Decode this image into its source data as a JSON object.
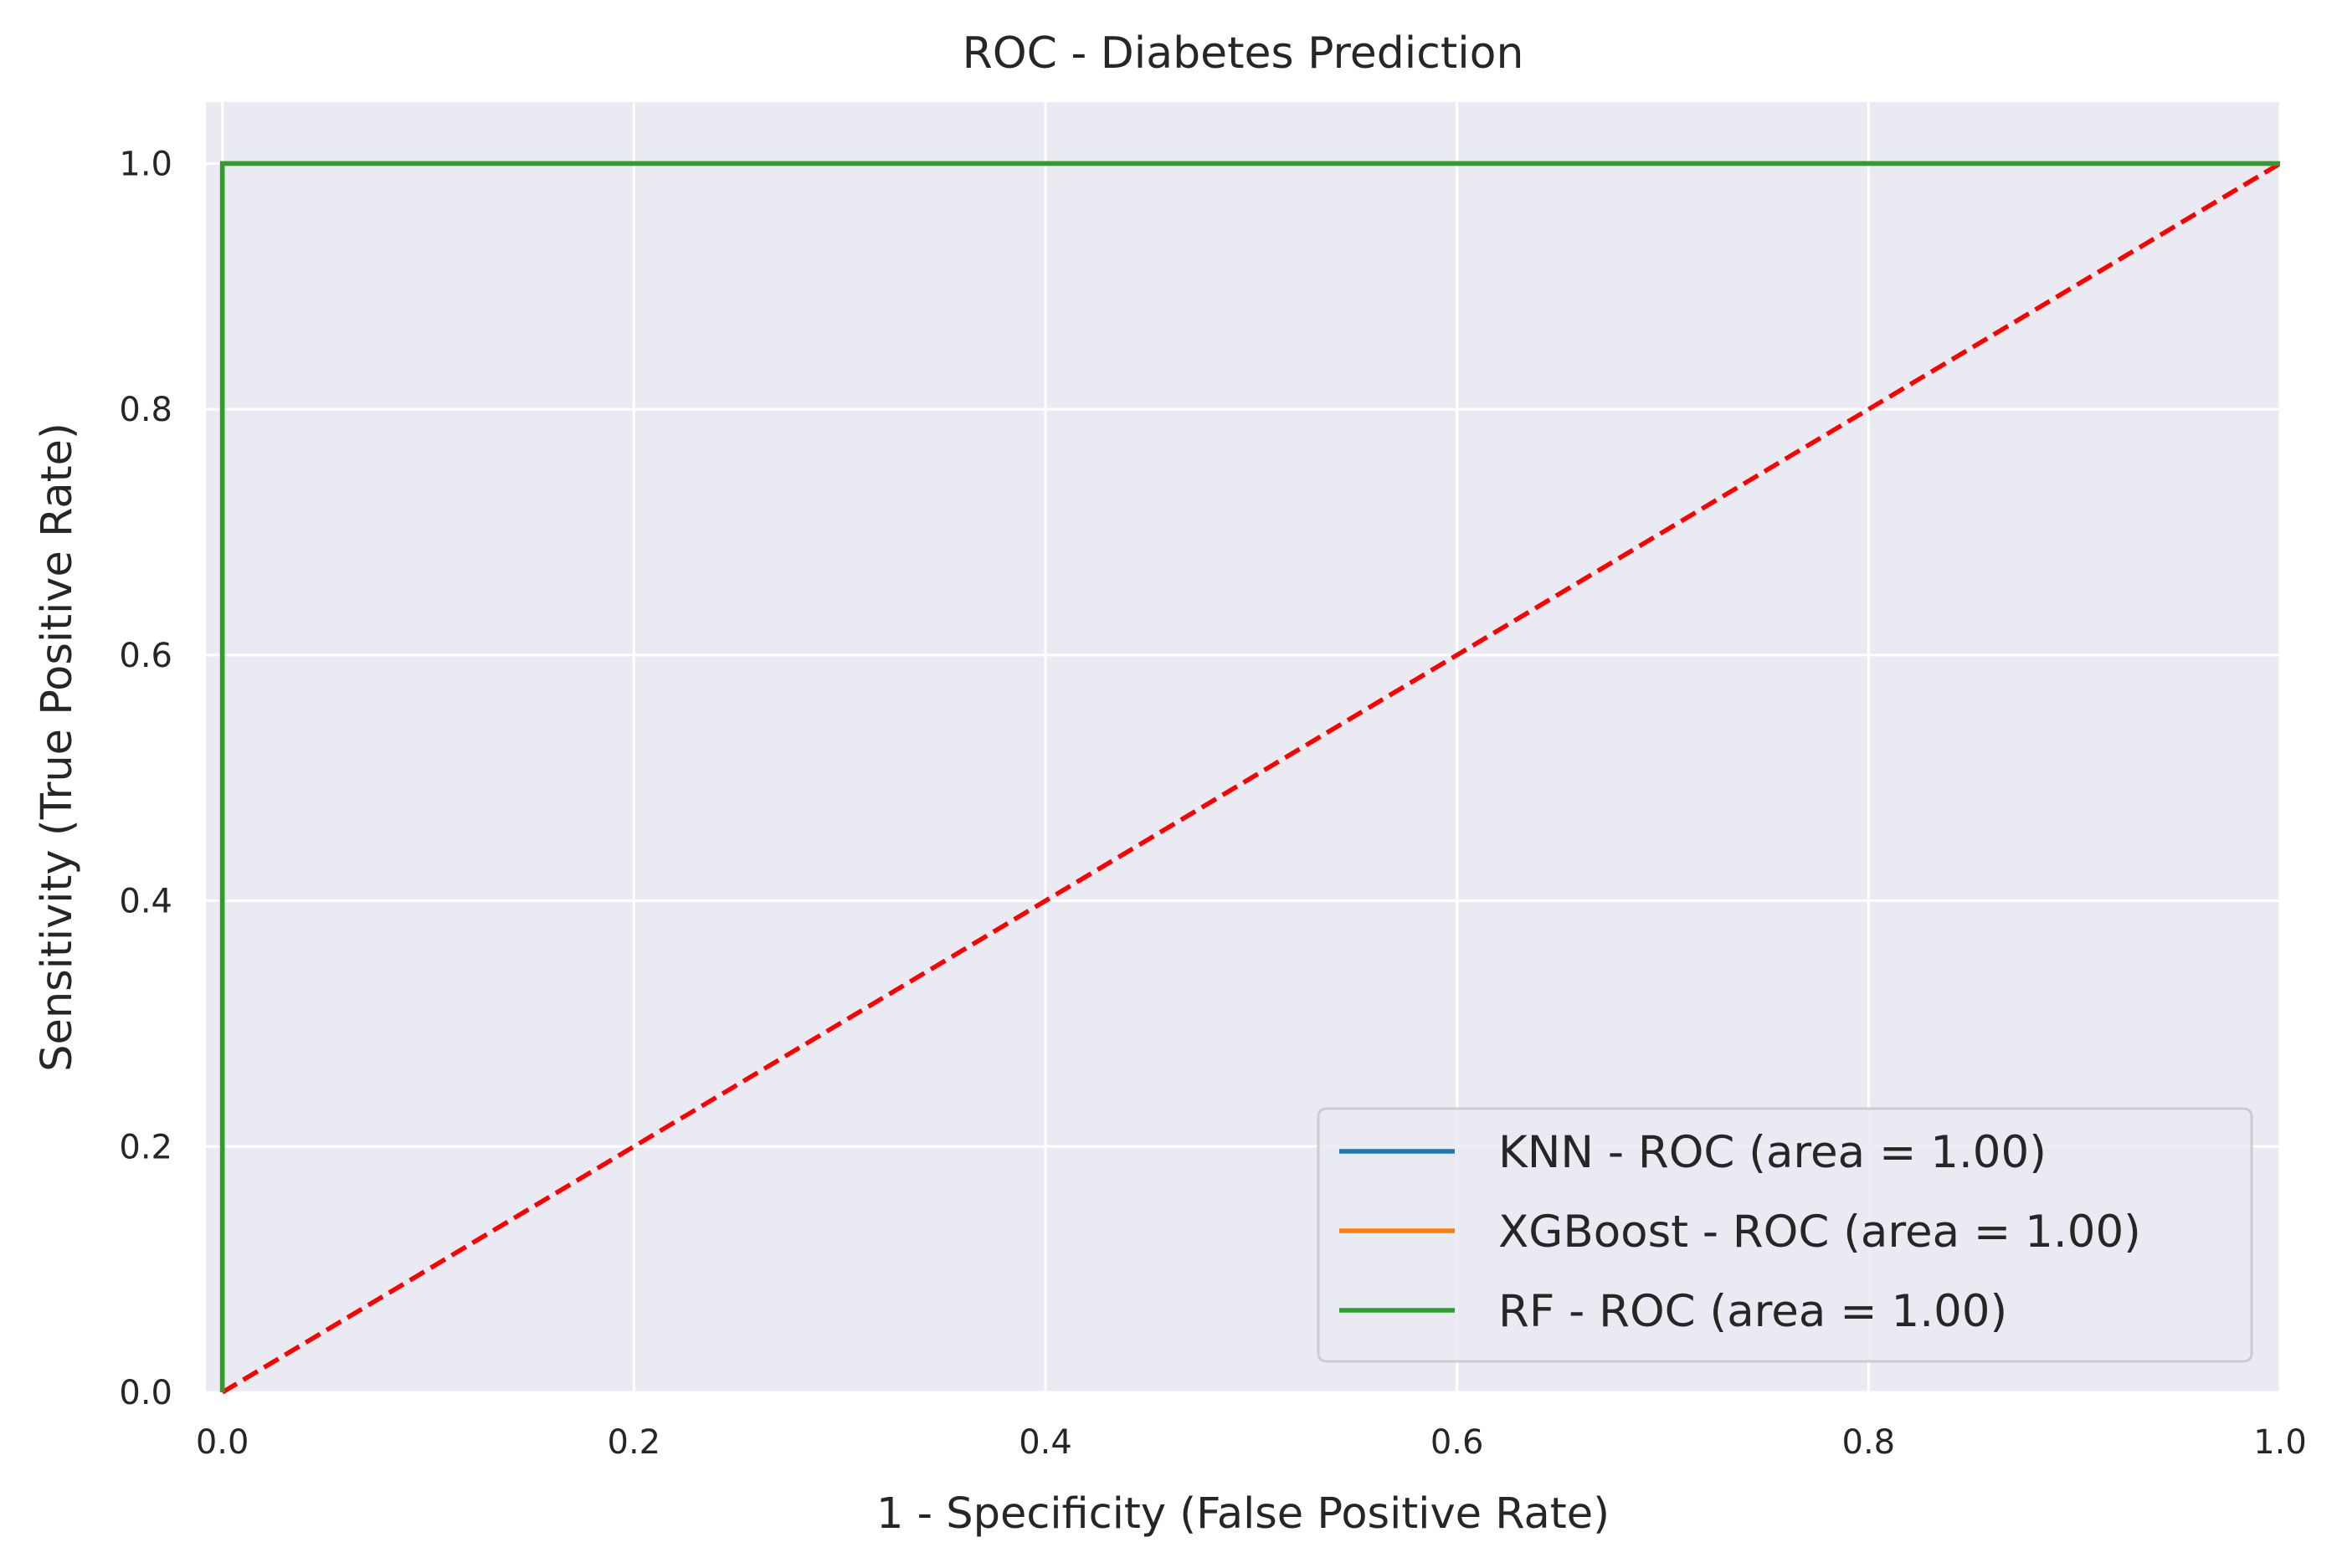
{
  "chart_data": {
    "type": "line",
    "title": "ROC - Diabetes Prediction",
    "xlabel": "1 - Specificity (False Positive Rate)",
    "ylabel": "Sensitivity (True Positive Rate)",
    "xlim": [
      -0.008,
      1.0
    ],
    "ylim": [
      0.0,
      1.05
    ],
    "xticks": [
      0.0,
      0.2,
      0.4,
      0.6,
      0.8,
      1.0
    ],
    "xtick_labels": [
      "0.0",
      "0.2",
      "0.4",
      "0.6",
      "0.8",
      "1.0"
    ],
    "yticks": [
      0.0,
      0.2,
      0.4,
      0.6,
      0.8,
      1.0
    ],
    "ytick_labels": [
      "0.0",
      "0.2",
      "0.4",
      "0.6",
      "0.8",
      "1.0"
    ],
    "grid": true,
    "background": "#eaeaf2",
    "grid_color": "#ffffff",
    "legend_position": "lower-right",
    "series": [
      {
        "name": "KNN - ROC (area = 1.00)",
        "color": "#1f77b4",
        "x": [
          0.0,
          0.0,
          1.0
        ],
        "y": [
          0.0,
          1.0,
          1.0
        ]
      },
      {
        "name": "XGBoost - ROC (area = 1.00)",
        "color": "#ff7f0e",
        "x": [
          0.0,
          0.0,
          1.0
        ],
        "y": [
          0.0,
          1.0,
          1.0
        ]
      },
      {
        "name": "RF - ROC (area = 1.00)",
        "color": "#2ca02c",
        "x": [
          0.0,
          0.0,
          1.0
        ],
        "y": [
          0.0,
          1.0,
          1.0
        ]
      }
    ],
    "reference_line": {
      "x": [
        0.0,
        1.0
      ],
      "y": [
        0.0,
        1.0
      ],
      "color": "#ff0000",
      "style": "dashed"
    }
  }
}
